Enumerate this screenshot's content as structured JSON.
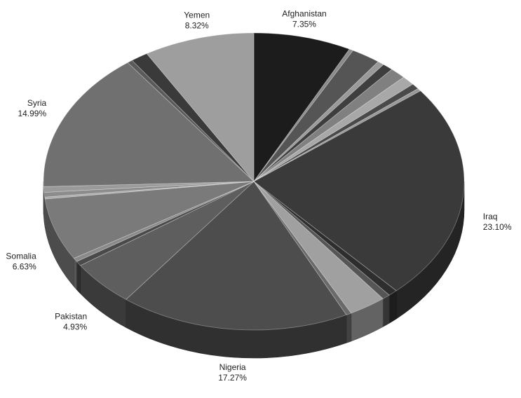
{
  "chart_data": {
    "type": "pie",
    "style": "3d",
    "title": "",
    "colors": {
      "outline": "#ffffff",
      "label_text": "#222222",
      "background": "#ffffff"
    },
    "slices": [
      {
        "name": "Afghanistan",
        "value": 7.35,
        "label": "Afghanistan",
        "percent_label": "7.35%",
        "color": "#1c1c1c"
      },
      {
        "name": "",
        "value": 0.3,
        "color": "#8a8a8a"
      },
      {
        "name": "",
        "value": 2.2,
        "color": "#555555"
      },
      {
        "name": "",
        "value": 0.5,
        "color": "#9a9a9a"
      },
      {
        "name": "",
        "value": 0.8,
        "color": "#3e3e3e"
      },
      {
        "name": "",
        "value": 1.2,
        "color": "#808080"
      },
      {
        "name": "",
        "value": 1.0,
        "color": "#a8a8a8"
      },
      {
        "name": "",
        "value": 0.6,
        "color": "#4a4a4a"
      },
      {
        "name": "",
        "value": 0.3,
        "color": "#999999"
      },
      {
        "name": "Iraq",
        "value": 23.1,
        "label": "Iraq",
        "percent_label": "23.10%",
        "color": "#3a3a3a"
      },
      {
        "name": "",
        "value": 0.7,
        "color": "#2e2e2e"
      },
      {
        "name": "",
        "value": 0.6,
        "color": "#555555"
      },
      {
        "name": "",
        "value": 2.8,
        "color": "#a0a0a0"
      },
      {
        "name": "",
        "value": 0.4,
        "color": "#6a6a6a"
      },
      {
        "name": "Nigeria",
        "value": 17.27,
        "label": "Nigeria",
        "percent_label": "17.27%",
        "color": "#4d4d4d"
      },
      {
        "name": "Pakistan",
        "value": 4.93,
        "label": "Pakistan",
        "percent_label": "4.93%",
        "color": "#5e5e5e"
      },
      {
        "name": "",
        "value": 0.5,
        "color": "#4a4a4a"
      },
      {
        "name": "",
        "value": 0.4,
        "color": "#8a8a8a"
      },
      {
        "name": "Somalia",
        "value": 6.63,
        "label": "Somalia",
        "percent_label": "6.63%",
        "color": "#7a7a7a"
      },
      {
        "name": "",
        "value": 0.2,
        "color": "#aaaaaa"
      },
      {
        "name": "",
        "value": 0.5,
        "color": "#8c8c8c"
      },
      {
        "name": "",
        "value": 0.6,
        "color": "#9a9a9a"
      },
      {
        "name": "Syria",
        "value": 14.99,
        "label": "Syria",
        "percent_label": "14.99%",
        "color": "#707070"
      },
      {
        "name": "",
        "value": 0.4,
        "color": "#5a5a5a"
      },
      {
        "name": "",
        "value": 1.3,
        "color": "#3a3a3a"
      },
      {
        "name": "Yemen",
        "value": 8.32,
        "label": "Yemen",
        "percent_label": "8.32%",
        "color": "#9e9e9e"
      }
    ]
  }
}
